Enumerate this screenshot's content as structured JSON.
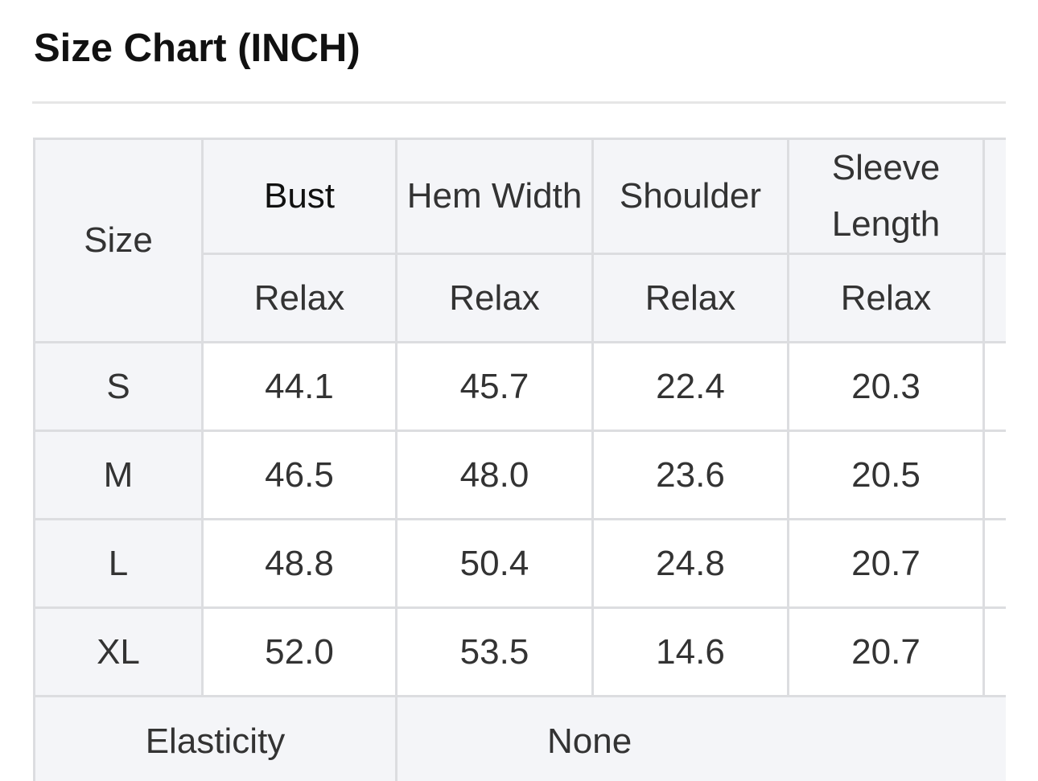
{
  "title": "Size Chart (INCH)",
  "table": {
    "size_header": "Size",
    "columns": [
      "Bust",
      "Hem Width",
      "Shoulder",
      "Sleeve Length"
    ],
    "subheaders": [
      "Relax",
      "Relax",
      "Relax",
      "Relax"
    ],
    "rows": [
      {
        "size": "S",
        "values": [
          "44.1",
          "45.7",
          "22.4",
          "20.3"
        ]
      },
      {
        "size": "M",
        "values": [
          "46.5",
          "48.0",
          "23.6",
          "20.5"
        ]
      },
      {
        "size": "L",
        "values": [
          "48.8",
          "50.4",
          "24.8",
          "20.7"
        ]
      },
      {
        "size": "XL",
        "values": [
          "52.0",
          "53.5",
          "14.6",
          "20.7"
        ]
      }
    ],
    "elasticity_label": "Elasticity",
    "elasticity_value": "None"
  }
}
